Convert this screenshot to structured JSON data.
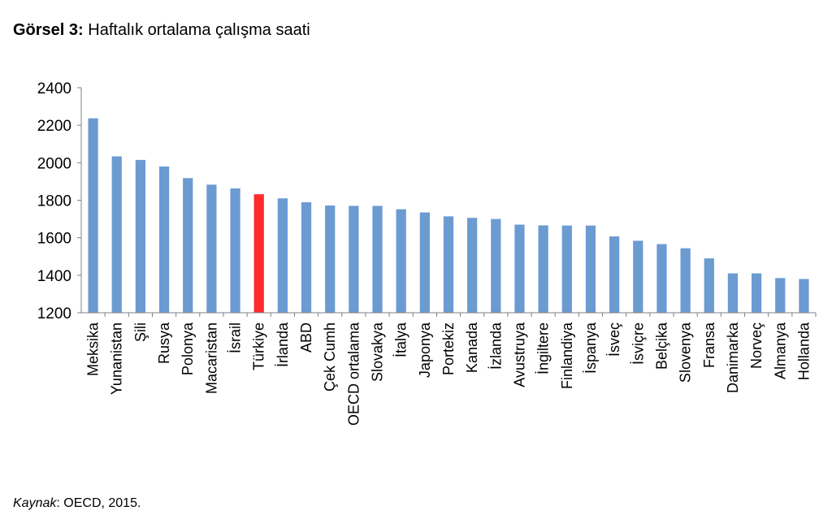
{
  "header": {
    "label": "Görsel 3:",
    "title": "Haftalık ortalama çalışma saati"
  },
  "footer": {
    "source_label": "Kaynak",
    "source_text": ": OECD, 2015."
  },
  "chart_data": {
    "type": "bar",
    "title": "Haftalık ortalama çalışma saati",
    "xlabel": "",
    "ylabel": "",
    "ylim": [
      1200,
      2400
    ],
    "yticks": [
      1200,
      1400,
      1600,
      1800,
      2000,
      2200,
      2400
    ],
    "grid": false,
    "colors": {
      "default": "#6c9bd2",
      "highlight": "#ff2a2a"
    },
    "highlight": "Türkiye",
    "categories": [
      "Meksika",
      "Yunanistan",
      "Şili",
      "Rusya",
      "Polonya",
      "Macaristan",
      "İsrail",
      "Türkiye",
      "İrlanda",
      "ABD",
      "Çek Cumh",
      "OECD ortalama",
      "Slovakya",
      "İtalya",
      "Japonya",
      "Portekiz",
      "Kanada",
      "İzlanda",
      "Avustruya",
      "İngiltere",
      "Finlandiya",
      "İspanya",
      "İsveç",
      "İsviçre",
      "Belçika",
      "Slovenya",
      "Fransa",
      "Danimarka",
      "Norveç",
      "Almanya",
      "Hollanda"
    ],
    "values": [
      2237,
      2034,
      2015,
      1980,
      1918,
      1883,
      1863,
      1832,
      1810,
      1789,
      1772,
      1770,
      1770,
      1752,
      1735,
      1714,
      1706,
      1700,
      1670,
      1666,
      1665,
      1665,
      1607,
      1584,
      1566,
      1544,
      1490,
      1410,
      1410,
      1385,
      1380
    ]
  }
}
